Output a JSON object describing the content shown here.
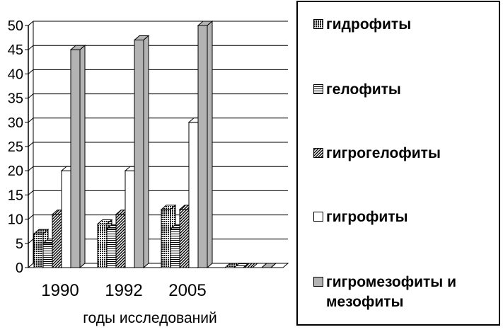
{
  "chart_data": {
    "type": "bar",
    "categories": [
      "1990",
      "1992",
      "2005",
      ""
    ],
    "xlabel": "годы исследований",
    "ylabel": "",
    "ylim": [
      0,
      50
    ],
    "yticks": [
      0,
      5,
      10,
      15,
      20,
      25,
      30,
      35,
      40,
      45,
      50
    ],
    "grid": true,
    "legend_position": "right",
    "bar_style": "3d-clustered",
    "series": [
      {
        "name": "гидрофиты",
        "values": [
          7,
          9,
          12,
          0
        ],
        "pattern": "grid",
        "color": "#000000"
      },
      {
        "name": "гелофиты",
        "values": [
          5,
          8,
          8,
          0
        ],
        "pattern": "horizontal-lines",
        "color": "#000000"
      },
      {
        "name": "гигрогелофиты",
        "values": [
          11,
          11,
          12,
          0
        ],
        "pattern": "diagonal-lines",
        "color": "#000000"
      },
      {
        "name": "гигрофиты",
        "values": [
          20,
          20,
          30,
          0
        ],
        "pattern": "solid",
        "color": "#ffffff"
      },
      {
        "name": "гигромезофиты и мезофиты",
        "values": [
          45,
          47,
          50,
          0
        ],
        "pattern": "solid",
        "color": "#b3b3b3"
      }
    ]
  }
}
